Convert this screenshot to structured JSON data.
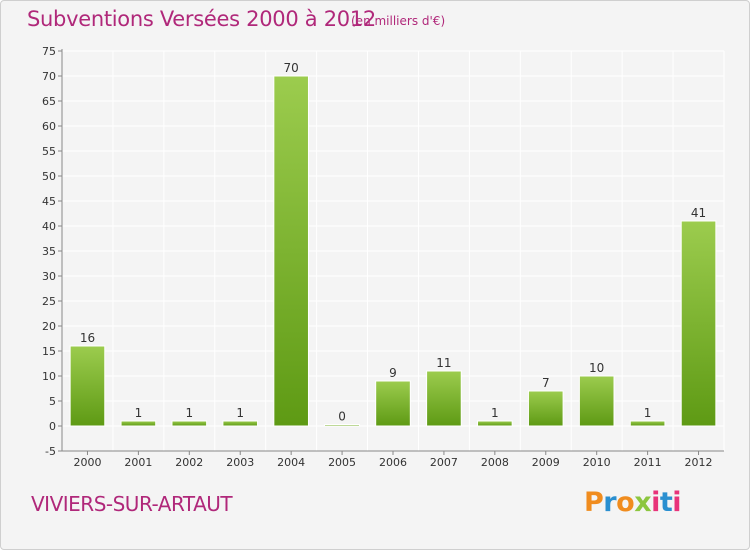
{
  "title": "Subventions Versées 2000 à 2012",
  "subtitle": "(en milliers d'€)",
  "town": "VIVIERS-SUR-ARTAUT",
  "brand": {
    "text": "Proxiti",
    "colors": [
      "#f08c1e",
      "#2a8fd0",
      "#8cc63f",
      "#e8337a"
    ]
  },
  "colors": {
    "bar_top": "#9ccc4e",
    "bar_bottom": "#5e9a14",
    "text_accent": "#b0287a",
    "grid": "#ffffff",
    "background": "#f4f4f4"
  },
  "chart_data": {
    "type": "bar",
    "categories": [
      "2000",
      "2001",
      "2002",
      "2003",
      "2004",
      "2005",
      "2006",
      "2007",
      "2008",
      "2009",
      "2010",
      "2011",
      "2012"
    ],
    "values": [
      16,
      1,
      1,
      1,
      70,
      0,
      9,
      11,
      1,
      7,
      10,
      1,
      41
    ],
    "title": "Subventions Versées 2000 à 2012",
    "xlabel": "",
    "ylabel": "",
    "ylim": [
      -5,
      75
    ],
    "yticks": [
      -5,
      0,
      5,
      10,
      15,
      20,
      25,
      30,
      35,
      40,
      45,
      50,
      55,
      60,
      65,
      70,
      75
    ],
    "grid": true,
    "data_labels": true
  }
}
